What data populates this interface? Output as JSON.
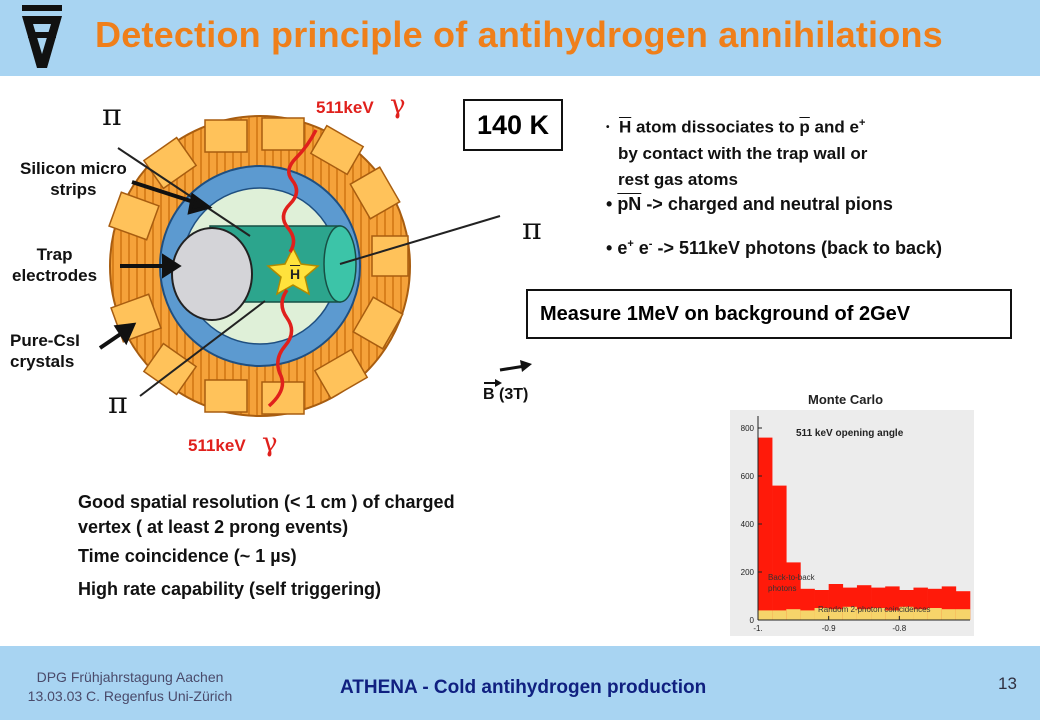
{
  "header": {
    "logo_glyph": "A",
    "title": "Detection principle of antihydrogen annihilations"
  },
  "detector": {
    "labels": {
      "silicon": [
        "Silicon micro",
        "strips"
      ],
      "trap": [
        "Trap",
        "electrodes"
      ],
      "pure": [
        "Pure-CsI",
        "crystals"
      ],
      "pi": "π",
      "gamma": "γ",
      "kev_top": "511keV",
      "kev_bottom": "511keV",
      "hbar": "H",
      "b_letter": "B",
      "b_value": "(3T)"
    },
    "colors": {
      "crystal": "#f5a23a",
      "electrode": "#5c9ad0",
      "core": "#2ca58d",
      "wave": "#e0201c"
    }
  },
  "temp_box": "140 K",
  "bullets": {
    "b1_h": "H",
    "b1_mid": " atom dissociates to ",
    "b1_p": "p",
    "b1_end": " and e",
    "b1_sup": "+",
    "b1_line2": "by contact with the trap wall or",
    "b1_line3": "rest gas atoms",
    "b2_pn": "pN",
    "b2_rest": " -> charged and neutral pions",
    "b3_e1": "e",
    "b3_s1": "+",
    "b3_e2": " e",
    "b3_s2": "-",
    "b3_rest": " -> 511keV photons (back to back)"
  },
  "measure_box": "Measure 1MeV on background  of 2GeV",
  "features": {
    "line1": "Good spatial resolution (< 1 cm ) of charged",
    "line2": "vertex ( at least 2 prong events)",
    "line3": "Time coincidence (~ 1 µs)",
    "line4": "High rate capability (self triggering)"
  },
  "chart_data": {
    "type": "bar",
    "title": "Monte Carlo",
    "subtitle": "511 keV opening angle",
    "xlabel": "",
    "ylabel": "",
    "x_ticks": [
      "-1.",
      "-0.9",
      "-0.8"
    ],
    "y_ticks": [
      "0",
      "200",
      "400",
      "600",
      "800"
    ],
    "ylim": [
      0,
      850
    ],
    "xlim": [
      -1.0,
      -0.7
    ],
    "annotations": [
      "Back-to-back photons",
      "Random 2-photon coincidences"
    ],
    "colors": {
      "signal": "#ff1a0a",
      "background": "#f6d46a"
    },
    "x": [
      -0.99,
      -0.97,
      -0.95,
      -0.93,
      -0.91,
      -0.89,
      -0.87,
      -0.85,
      -0.83,
      -0.81,
      -0.79,
      -0.77,
      -0.75,
      -0.73,
      -0.71
    ],
    "series": [
      {
        "name": "Back-to-back photons",
        "values": [
          760,
          560,
          240,
          130,
          125,
          150,
          135,
          145,
          135,
          140,
          125,
          135,
          130,
          140,
          120
        ]
      },
      {
        "name": "Random 2-photon coincidences",
        "values": [
          40,
          40,
          45,
          40,
          50,
          45,
          55,
          45,
          50,
          40,
          55,
          45,
          50,
          45,
          45
        ]
      }
    ]
  },
  "footer": {
    "left_line1": "DPG  Frühjahrstagung  Aachen",
    "left_line2": "13.03.03 C. Regenfus Uni-Zürich",
    "center": "ATHENA - Cold antihydrogen production",
    "page": "13"
  }
}
